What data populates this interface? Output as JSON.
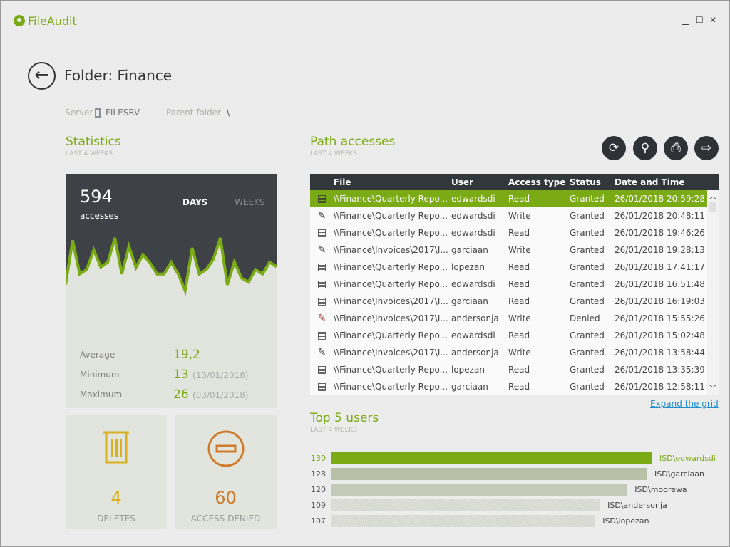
{
  "app": {
    "title": "FileAudit",
    "accent": "#7aab14"
  },
  "window": {
    "minimize": "▁",
    "maximize": "☐",
    "close": "✕"
  },
  "header": {
    "title": "Folder: Finance",
    "server_label": "Server",
    "server_value": "FILESRV",
    "parent_label": "Parent folder",
    "parent_value": "\\"
  },
  "statistics": {
    "title": "Statistics",
    "subtitle": "LAST 4 WEEKS",
    "total": "594",
    "total_label": "accesses",
    "tab_days": "DAYS",
    "tab_weeks": "WEEKS",
    "average_label": "Average",
    "average": "19,2",
    "minimum_label": "Minimum",
    "minimum": "13",
    "minimum_date": "(13/01/2018)",
    "maximum_label": "Maximum",
    "maximum": "26",
    "maximum_date": "(03/01/2018)"
  },
  "chart_data": {
    "type": "area",
    "values": [
      14.5,
      25.4,
      17.1,
      18.2,
      23,
      18.8,
      20,
      26,
      17.1,
      23.9,
      18.7,
      21.9,
      19.8,
      17.1,
      17.1,
      20,
      17.1,
      13,
      23.5,
      17.1,
      18.2,
      20.7,
      26,
      14.4,
      20.1,
      16.1,
      15.1,
      18.2,
      17.1,
      20,
      18.9
    ],
    "color": "#7aab14"
  },
  "tiles": {
    "deletes": "4",
    "deletes_label": "DELETES",
    "deletes_color": "#d9b020",
    "denied": "60",
    "denied_label": "ACCESS DENIED",
    "denied_color": "#d07a2a"
  },
  "path": {
    "title": "Path accesses",
    "subtitle": "LAST 4 WEEKS",
    "columns": [
      "File",
      "User",
      "Access type",
      "Status",
      "Date and Time"
    ],
    "rows": [
      {
        "icon": "doc",
        "file": "\\\\Finance\\Quarterly Repo...",
        "user": "edwardsdi",
        "type": "Read",
        "status": "Granted",
        "date": "26/01/2018 20:59:28"
      },
      {
        "icon": "pencil",
        "file": "\\\\Finance\\Quarterly Repo...",
        "user": "edwardsdi",
        "type": "Write",
        "status": "Granted",
        "date": "26/01/2018 20:48:11"
      },
      {
        "icon": "doc",
        "file": "\\\\Finance\\Quarterly Repo...",
        "user": "edwardsdi",
        "type": "Read",
        "status": "Granted",
        "date": "26/01/2018 19:46:26"
      },
      {
        "icon": "pencil",
        "file": "\\\\Finance\\Invoices\\2017\\I...",
        "user": "garciaan",
        "type": "Write",
        "status": "Granted",
        "date": "26/01/2018 19:28:13"
      },
      {
        "icon": "doc",
        "file": "\\\\Finance\\Quarterly Repo...",
        "user": "lopezan",
        "type": "Read",
        "status": "Granted",
        "date": "26/01/2018 17:41:17"
      },
      {
        "icon": "doc",
        "file": "\\\\Finance\\Quarterly Repo...",
        "user": "edwardsdi",
        "type": "Read",
        "status": "Granted",
        "date": "26/01/2018 16:51:48"
      },
      {
        "icon": "doc",
        "file": "\\\\Finance\\Invoices\\2017\\I...",
        "user": "garciaan",
        "type": "Read",
        "status": "Granted",
        "date": "26/01/2018 16:19:03"
      },
      {
        "icon": "pencil-denied",
        "file": "\\\\Finance\\Invoices\\2017\\I...",
        "user": "andersonja",
        "type": "Write",
        "status": "Denied",
        "date": "26/01/2018 15:55:26"
      },
      {
        "icon": "doc",
        "file": "\\\\Finance\\Quarterly Repo...",
        "user": "edwardsdi",
        "type": "Read",
        "status": "Granted",
        "date": "26/01/2018 15:02:48"
      },
      {
        "icon": "pencil",
        "file": "\\\\Finance\\Invoices\\2017\\I...",
        "user": "andersonja",
        "type": "Write",
        "status": "Granted",
        "date": "26/01/2018 13:58:44"
      },
      {
        "icon": "doc",
        "file": "\\\\Finance\\Quarterly Repo...",
        "user": "lopezan",
        "type": "Read",
        "status": "Granted",
        "date": "26/01/2018 13:35:39"
      },
      {
        "icon": "doc",
        "file": "\\\\Finance\\Quarterly Repo...",
        "user": "garciaan",
        "type": "Read",
        "status": "Granted",
        "date": "26/01/2018 12:58:11"
      }
    ],
    "expand": "Expand the grid"
  },
  "top_users": {
    "title": "Top 5 users",
    "subtitle": "LAST 4 WEEKS",
    "users": [
      {
        "name": "ISD\\edwardsdi",
        "count": 130
      },
      {
        "name": "ISD\\garciaan",
        "count": 128
      },
      {
        "name": "ISD\\moorewa",
        "count": 120
      },
      {
        "name": "ISD\\andersonja",
        "count": 109
      },
      {
        "name": "ISD\\lopezan",
        "count": 107
      }
    ]
  }
}
